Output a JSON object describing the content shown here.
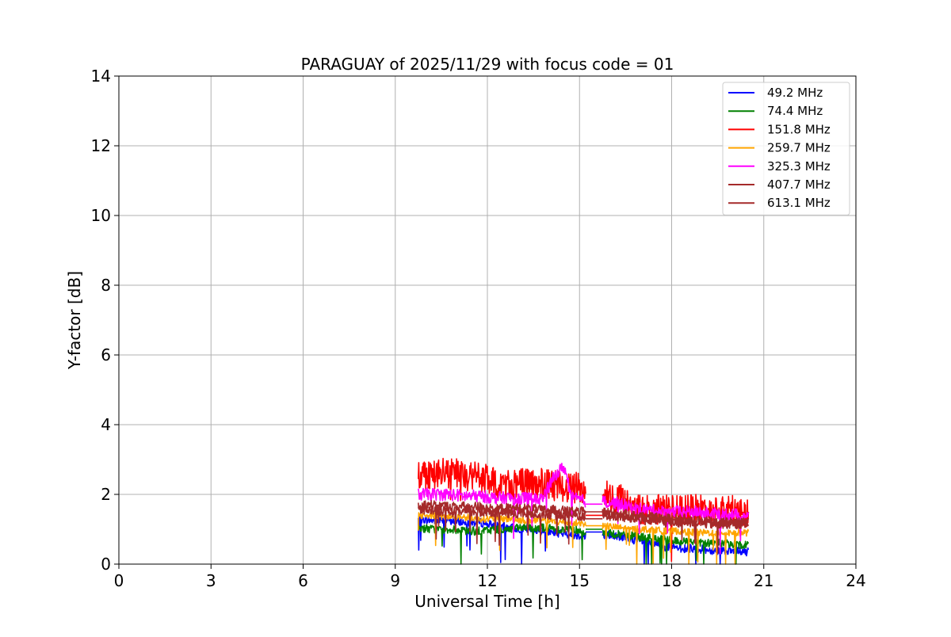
{
  "chart_data": {
    "type": "line",
    "title": "PARAGUAY of 2025/11/29 with focus code = 01",
    "xlabel": "Universal Time [h]",
    "ylabel": "Y-factor [dB]",
    "xlim": [
      0,
      24
    ],
    "ylim": [
      0,
      14
    ],
    "xticks": [
      0,
      3,
      6,
      9,
      12,
      15,
      18,
      21,
      24
    ],
    "yticks": [
      0,
      2,
      4,
      6,
      8,
      10,
      12,
      14
    ],
    "xtick_labels": [
      "0",
      "3",
      "6",
      "9",
      "12",
      "15",
      "18",
      "21",
      "24"
    ],
    "ytick_labels": [
      "0",
      "2",
      "4",
      "6",
      "8",
      "10",
      "12",
      "14"
    ],
    "grid": true,
    "legend_position": "top-right",
    "series": [
      {
        "name": " 49.2 MHz",
        "color": "#0000ff",
        "segments": [
          {
            "x": [
              9.75,
              10.25,
              10.75,
              11.25,
              11.75,
              12.25,
              12.75,
              13.25,
              13.75,
              14.25,
              14.75,
              15.2
            ],
            "y": [
              1.3,
              1.25,
              1.25,
              1.2,
              1.2,
              1.1,
              1.05,
              1.0,
              0.95,
              0.9,
              0.85,
              0.8
            ]
          },
          {
            "x": [
              15.2,
              15.75
            ],
            "y": [
              0.92,
              0.92
            ]
          },
          {
            "x": [
              15.75,
              16.25,
              16.75,
              17.25,
              17.75,
              18.25,
              18.75,
              19.25,
              19.75,
              20.25,
              20.5
            ],
            "y": [
              0.85,
              0.8,
              0.7,
              0.6,
              0.5,
              0.45,
              0.45,
              0.4,
              0.4,
              0.35,
              0.35
            ]
          }
        ]
      },
      {
        "name": " 74.4 MHz",
        "color": "#008000",
        "segments": [
          {
            "x": [
              9.75,
              10.25,
              10.75,
              11.25,
              11.75,
              12.25,
              12.75,
              13.25,
              13.75,
              14.25,
              14.75,
              15.2
            ],
            "y": [
              1.05,
              1.0,
              1.0,
              0.95,
              0.95,
              1.0,
              1.0,
              1.05,
              1.05,
              1.0,
              1.0,
              0.95
            ]
          },
          {
            "x": [
              15.2,
              15.75
            ],
            "y": [
              1.0,
              1.0
            ]
          },
          {
            "x": [
              15.75,
              16.25,
              16.75,
              17.25,
              17.75,
              18.25,
              18.75,
              19.25,
              19.75,
              20.25,
              20.5
            ],
            "y": [
              0.9,
              0.85,
              0.8,
              0.75,
              0.7,
              0.65,
              0.65,
              0.6,
              0.6,
              0.55,
              0.55
            ]
          }
        ]
      },
      {
        "name": " 151.8 MHz",
        "color": "#ff0000",
        "segments": [
          {
            "x": [
              9.75,
              10.25,
              10.75,
              11.25,
              11.75,
              12.25,
              12.75,
              13.25,
              13.75,
              14.25,
              14.75,
              15.2
            ],
            "y": [
              2.6,
              2.6,
              2.6,
              2.55,
              2.5,
              2.3,
              2.3,
              2.3,
              2.3,
              2.25,
              2.2,
              2.15
            ]
          },
          {
            "x": [
              15.2,
              15.75
            ],
            "y": [
              1.4,
              1.4
            ]
          },
          {
            "x": [
              15.75,
              16.25,
              16.75,
              17.25,
              17.75,
              18.25,
              18.75,
              19.25,
              19.75,
              20.25,
              20.5
            ],
            "y": [
              2.0,
              1.9,
              1.6,
              1.55,
              1.55,
              1.55,
              1.55,
              1.55,
              1.55,
              1.5,
              1.5
            ]
          }
        ]
      },
      {
        "name": " 259.7 MHz",
        "color": "#ffa500",
        "segments": [
          {
            "x": [
              9.75,
              10.25,
              10.75,
              11.25,
              11.75,
              12.25,
              12.75,
              13.25,
              13.75,
              14.25,
              14.75,
              15.2
            ],
            "y": [
              1.4,
              1.4,
              1.35,
              1.35,
              1.3,
              1.3,
              1.3,
              1.25,
              1.25,
              1.2,
              1.2,
              1.15
            ]
          },
          {
            "x": [
              15.2,
              15.75
            ],
            "y": [
              1.1,
              1.1
            ]
          },
          {
            "x": [
              15.75,
              16.25,
              16.75,
              17.25,
              17.75,
              18.25,
              18.75,
              19.25,
              19.75,
              20.25,
              20.5
            ],
            "y": [
              1.1,
              1.05,
              1.0,
              1.0,
              0.95,
              0.95,
              0.9,
              0.9,
              0.9,
              0.9,
              0.9
            ]
          }
        ]
      },
      {
        "name": " 325.3 MHz",
        "color": "#ff00ff",
        "segments": [
          {
            "x": [
              9.75,
              10.25,
              10.75,
              11.25,
              11.75,
              12.25,
              12.75,
              13.25,
              13.75,
              14.25,
              14.5,
              14.75,
              15.2
            ],
            "y": [
              2.0,
              2.0,
              2.0,
              1.95,
              1.95,
              1.9,
              1.9,
              1.9,
              1.85,
              2.6,
              2.8,
              1.9,
              1.8
            ]
          },
          {
            "x": [
              15.2,
              15.75
            ],
            "y": [
              1.72,
              1.72
            ]
          },
          {
            "x": [
              15.75,
              16.25,
              16.75,
              17.25,
              17.75,
              18.25,
              18.75,
              19.25,
              19.75,
              20.25,
              20.5
            ],
            "y": [
              1.8,
              1.75,
              1.6,
              1.55,
              1.5,
              1.5,
              1.5,
              1.45,
              1.45,
              1.4,
              1.4
            ]
          }
        ]
      },
      {
        "name": " 407.7 MHz",
        "color": "#a52a2a",
        "segments": [
          {
            "x": [
              9.75,
              10.25,
              10.75,
              11.25,
              11.75,
              12.25,
              12.75,
              13.25,
              13.75,
              14.25,
              14.75,
              15.2
            ],
            "y": [
              1.55,
              1.55,
              1.5,
              1.5,
              1.5,
              1.5,
              1.45,
              1.45,
              1.45,
              1.4,
              1.4,
              1.35
            ]
          },
          {
            "x": [
              15.2,
              15.75
            ],
            "y": [
              1.5,
              1.5
            ]
          },
          {
            "x": [
              15.75,
              16.25,
              16.75,
              17.25,
              17.75,
              18.25,
              18.75,
              19.25,
              19.75,
              20.25,
              20.5
            ],
            "y": [
              1.4,
              1.35,
              1.3,
              1.25,
              1.2,
              1.2,
              1.2,
              1.15,
              1.15,
              1.15,
              1.15
            ]
          }
        ]
      },
      {
        "name": " 613.1 MHz",
        "color": "#a52a2a",
        "segments": [
          {
            "x": [
              9.75,
              10.25,
              10.75,
              11.25,
              11.75,
              12.25,
              12.75,
              13.25,
              13.75,
              14.25,
              14.75,
              15.2
            ],
            "y": [
              1.7,
              1.7,
              1.65,
              1.65,
              1.65,
              1.6,
              1.6,
              1.6,
              1.55,
              1.55,
              1.5,
              1.5
            ]
          },
          {
            "x": [
              15.2,
              15.75
            ],
            "y": [
              1.3,
              1.3
            ]
          },
          {
            "x": [
              15.75,
              16.25,
              16.75,
              17.25,
              17.75,
              18.25,
              18.75,
              19.25,
              19.75,
              20.25,
              20.5
            ],
            "y": [
              1.5,
              1.45,
              1.4,
              1.35,
              1.3,
              1.3,
              1.25,
              1.25,
              1.2,
              1.2,
              1.2
            ]
          }
        ]
      }
    ]
  }
}
